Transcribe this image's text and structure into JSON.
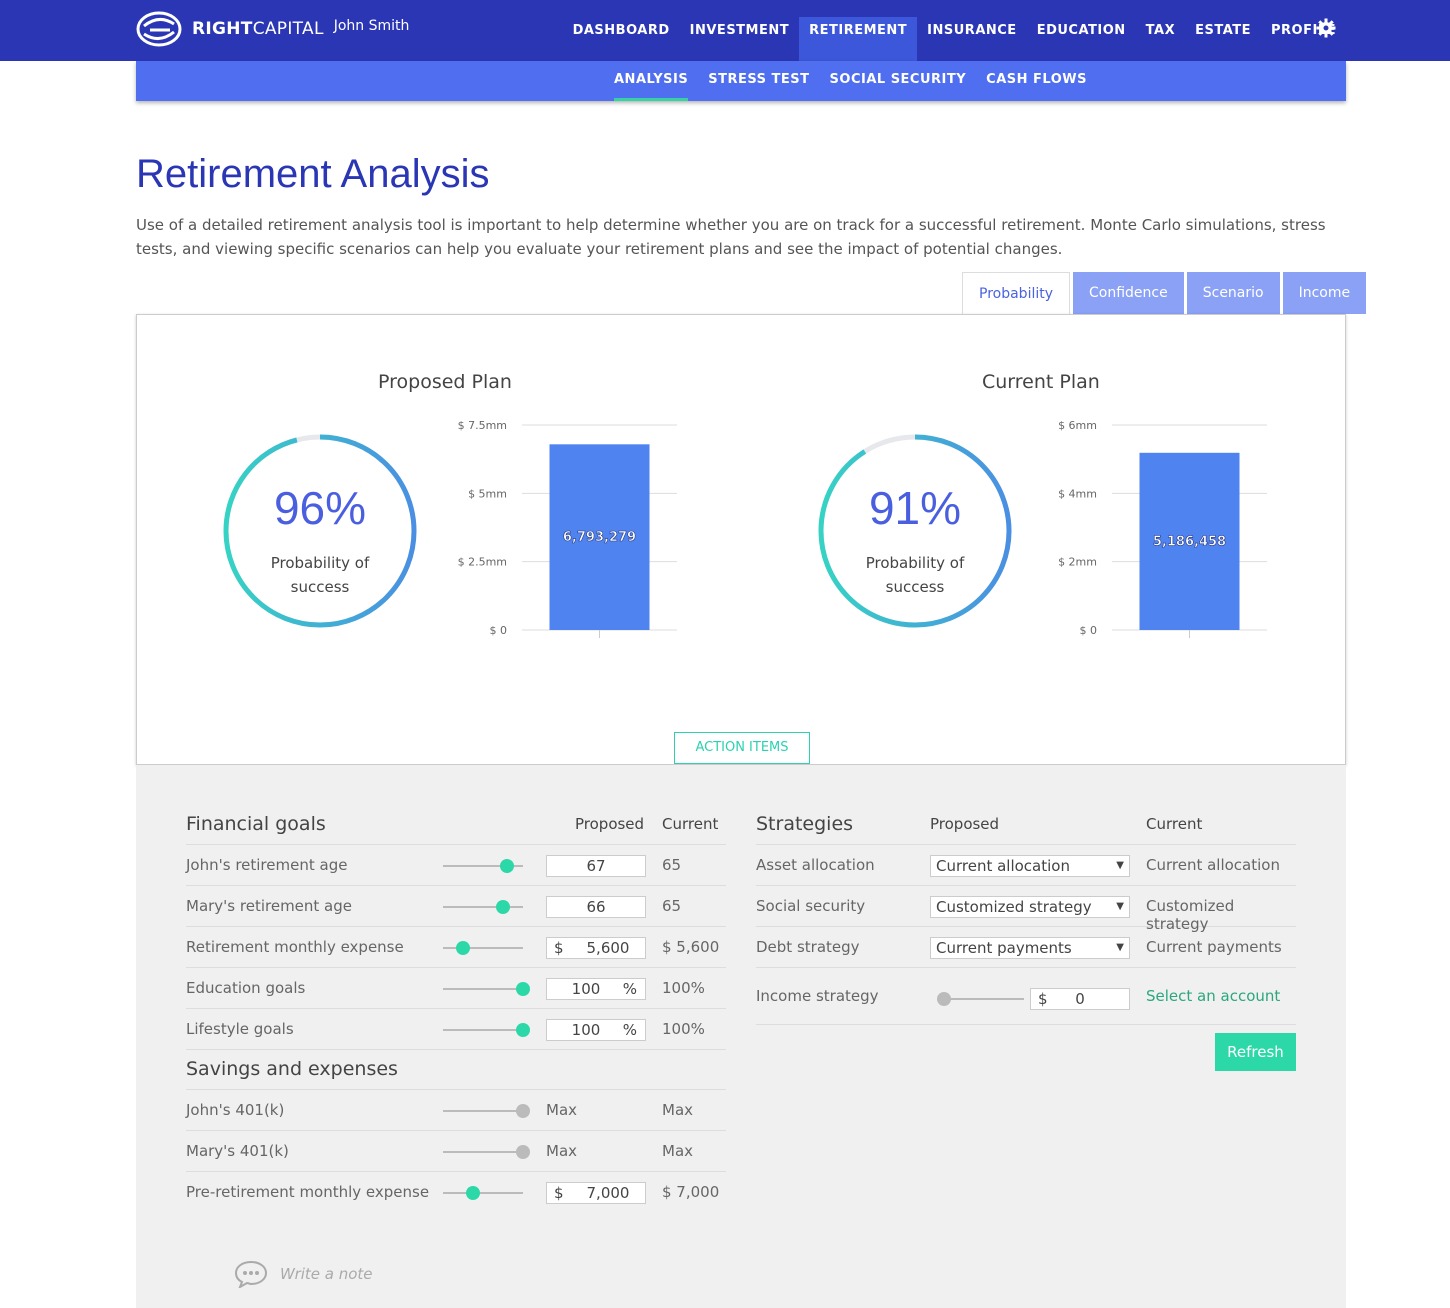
{
  "brand": {
    "bold": "RIGHT",
    "light": "CAPITAL",
    "user": "John Smith"
  },
  "main_nav": [
    "DASHBOARD",
    "INVESTMENT",
    "RETIREMENT",
    "INSURANCE",
    "EDUCATION",
    "TAX",
    "ESTATE",
    "PROFILE"
  ],
  "main_nav_active": "RETIREMENT",
  "sub_nav": [
    "ANALYSIS",
    "STRESS TEST",
    "SOCIAL SECURITY",
    "CASH FLOWS"
  ],
  "sub_nav_active": "ANALYSIS",
  "page": {
    "title": "Retirement Analysis",
    "description": "Use of a detailed retirement analysis tool is important to help determine whether you are on track for a successful retirement. Monte Carlo simulations, stress tests, and viewing specific scenarios can help you evaluate your retirement plans and see the impact of potential changes."
  },
  "tabs": [
    "Probability",
    "Confidence",
    "Scenario",
    "Income"
  ],
  "tabs_active": "Probability",
  "colors": {
    "brand": "#2b36b5",
    "subnav": "#4f6ef0",
    "accent": "#2dd8a8",
    "bar": "#4f83f0",
    "ring_top": "#36d3c4",
    "ring_bottom": "#4a8fe2"
  },
  "proposed": {
    "title": "Proposed Plan",
    "percent": "96%",
    "probability_fraction": 0.96,
    "label_line1": "Probability of",
    "label_line2": "success"
  },
  "current": {
    "title": "Current Plan",
    "percent": "91%",
    "probability_fraction": 0.91,
    "label_line1": "Probability of",
    "label_line2": "success"
  },
  "chart_data": [
    {
      "type": "bar",
      "categories": [
        ""
      ],
      "values": [
        6793279
      ],
      "value_label": "6,793,279",
      "ylim": [
        0,
        7500000
      ],
      "ticks": [
        "$ 0",
        "$ 2.5mm",
        "$ 5mm",
        "$ 7.5mm"
      ],
      "tick_values": [
        0,
        2500000,
        5000000,
        7500000
      ],
      "grid": true
    },
    {
      "type": "bar",
      "categories": [
        ""
      ],
      "values": [
        5186458
      ],
      "value_label": "5,186,458",
      "ylim": [
        0,
        6000000
      ],
      "ticks": [
        "$ 0",
        "$ 2mm",
        "$ 4mm",
        "$ 6mm"
      ],
      "tick_values": [
        0,
        2000000,
        4000000,
        6000000
      ],
      "grid": true
    }
  ],
  "action_items": "ACTION ITEMS",
  "financial_goals": {
    "title": "Financial goals",
    "col_proposed": "Proposed",
    "col_current": "Current",
    "rows": [
      {
        "label": "John's retirement age",
        "slider": 0.8,
        "prefix": "",
        "value": "67",
        "suffix": "",
        "current": "65"
      },
      {
        "label": "Mary's retirement age",
        "slider": 0.75,
        "prefix": "",
        "value": "66",
        "suffix": "",
        "current": "65"
      },
      {
        "label": "Retirement monthly expense",
        "slider": 0.25,
        "prefix": "$",
        "value": "5,600",
        "suffix": "",
        "current": "$ 5,600"
      },
      {
        "label": "Education goals",
        "slider": 1.0,
        "prefix": "",
        "value": "100",
        "suffix": "%",
        "current": "100%"
      },
      {
        "label": "Lifestyle goals",
        "slider": 1.0,
        "prefix": "",
        "value": "100",
        "suffix": "%",
        "current": "100%"
      }
    ]
  },
  "savings": {
    "title": "Savings and expenses",
    "rows": [
      {
        "label": "John's 401(k)",
        "slider": 1.0,
        "proposed": "Max",
        "current": "Max"
      },
      {
        "label": "Mary's 401(k)",
        "slider": 1.0,
        "proposed": "Max",
        "current": "Max"
      },
      {
        "label": "Pre-retirement monthly expense",
        "slider": 0.37,
        "prefix": "$",
        "value": "7,000",
        "current": "$ 7,000"
      }
    ]
  },
  "strategies": {
    "title": "Strategies",
    "col_proposed": "Proposed",
    "col_current": "Current",
    "rows": [
      {
        "label": "Asset allocation",
        "selected": "Current allocation",
        "current": "Current allocation"
      },
      {
        "label": "Social security",
        "selected": "Customized strategy",
        "current": "Customized strategy"
      },
      {
        "label": "Debt strategy",
        "selected": "Current payments",
        "current": "Current payments"
      }
    ],
    "income": {
      "label": "Income strategy",
      "slider": 0.0,
      "prefix": "$",
      "value": "0",
      "link": "Select an account"
    },
    "refresh": "Refresh"
  },
  "note": {
    "placeholder": "Write a note"
  }
}
